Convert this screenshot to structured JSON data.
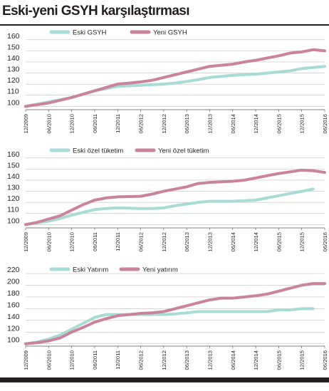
{
  "title": "Eski-yeni GSYH karşılaştırması",
  "colors": {
    "old": "#a8dad6",
    "new": "#c9839b",
    "grid": "#bfbfbf",
    "axis": "#555555"
  },
  "chart_data": [
    {
      "type": "line",
      "x": [
        "12/2009",
        "03/2010",
        "06/2010",
        "09/2010",
        "12/2010",
        "03/2011",
        "06/2011",
        "09/2011",
        "12/2011",
        "03/2012",
        "06/2012",
        "09/2012",
        "12/2012",
        "03/2013",
        "06/2013",
        "09/2013",
        "12/2013",
        "03/2014",
        "06/2014",
        "09/2014",
        "12/2014",
        "03/2015",
        "06/2015",
        "09/2015",
        "12/2015",
        "03/2016",
        "06/2016"
      ],
      "xticks": [
        "12/2009",
        "06/2010",
        "12/2010",
        "06/2011",
        "12/2011",
        "06/2012",
        "12/2012",
        "06/2013",
        "12/2013",
        "06/2014",
        "12/2014",
        "06/2015",
        "12/2015",
        "06/2016"
      ],
      "yticks": [
        100,
        110,
        120,
        130,
        140,
        150,
        160
      ],
      "ylim": [
        97,
        165
      ],
      "grid": true,
      "legend_position": "top-left",
      "series": [
        {
          "name": "Eski GSYH",
          "color": "#a8dad6",
          "values": [
            100,
            102,
            104,
            106,
            108,
            111,
            114,
            116,
            118,
            118.5,
            119,
            119.5,
            120,
            121,
            122.5,
            124,
            126,
            127,
            128,
            128.5,
            129,
            130,
            131,
            132,
            134,
            135,
            136
          ]
        },
        {
          "name": "Yeni GSYH",
          "color": "#c9839b",
          "values": [
            100,
            101.5,
            103,
            105.5,
            108,
            111,
            114,
            117,
            120,
            121,
            122,
            123.5,
            126,
            128.5,
            131,
            133.5,
            136,
            137,
            138,
            140,
            141.5,
            143.5,
            145.5,
            148,
            149,
            151,
            150
          ]
        }
      ]
    },
    {
      "type": "line",
      "x": [
        "12/2009",
        "03/2010",
        "06/2010",
        "09/2010",
        "12/2010",
        "03/2011",
        "06/2011",
        "09/2011",
        "12/2011",
        "03/2012",
        "06/2012",
        "09/2012",
        "12/2012",
        "03/2013",
        "06/2013",
        "09/2013",
        "12/2013",
        "03/2014",
        "06/2014",
        "09/2014",
        "12/2014",
        "03/2015",
        "06/2015",
        "09/2015",
        "12/2015",
        "03/2016",
        "06/2016"
      ],
      "xticks": [
        "12/2009",
        "06/2010",
        "12/2010",
        "06/2011",
        "12/2011",
        "06/2012",
        "12/2012",
        "06/2013",
        "12/2013",
        "06/2014",
        "12/2014",
        "06/2015",
        "12/2015",
        "06/2016"
      ],
      "yticks": [
        100,
        110,
        120,
        130,
        140,
        150,
        160
      ],
      "ylim": [
        97,
        165
      ],
      "grid": true,
      "legend_position": "top-left",
      "series": [
        {
          "name": "Eski özel tüketim",
          "color": "#a8dad6",
          "values": [
            100,
            101.5,
            103,
            105.5,
            108.5,
            111,
            113.5,
            114.5,
            115,
            114.8,
            114.5,
            114.5,
            115,
            117,
            118.5,
            120,
            121,
            121,
            121,
            121.5,
            122,
            124,
            126,
            128,
            130,
            132,
            null
          ]
        },
        {
          "name": "Yeni özel tüketim",
          "color": "#c9839b",
          "values": [
            100,
            102,
            105,
            108,
            113,
            118,
            122,
            124,
            125,
            125.2,
            125.5,
            127.5,
            130,
            132,
            134,
            137,
            138,
            138.5,
            139,
            140,
            142,
            144,
            146,
            147.5,
            149,
            148.5,
            147
          ]
        }
      ]
    },
    {
      "type": "line",
      "x": [
        "12/2009",
        "03/2010",
        "06/2010",
        "09/2010",
        "12/2010",
        "03/2011",
        "06/2011",
        "09/2011",
        "12/2011",
        "03/2012",
        "06/2012",
        "09/2012",
        "12/2012",
        "03/2013",
        "06/2013",
        "09/2013",
        "12/2013",
        "03/2014",
        "06/2014",
        "09/2014",
        "12/2014",
        "03/2015",
        "06/2015",
        "09/2015",
        "12/2015",
        "03/2016",
        "06/2016"
      ],
      "xticks": [
        "12/2009",
        "06/2010",
        "12/2010",
        "06/2011",
        "12/2011",
        "06/2012",
        "12/2012",
        "06/2013",
        "12/2013",
        "06/2014",
        "12/2014",
        "06/2015",
        "12/2015",
        "06/2016"
      ],
      "yticks": [
        100,
        120,
        140,
        160,
        180,
        200,
        220
      ],
      "ylim": [
        96,
        225
      ],
      "grid": true,
      "legend_position": "top-left",
      "series": [
        {
          "name": "Eski Yatırım",
          "color": "#a8dad6",
          "values": [
            100,
            103,
            108,
            115,
            125,
            135,
            145,
            150,
            150,
            150,
            150,
            150,
            150,
            151,
            153,
            155,
            155,
            155,
            155,
            155,
            155,
            155,
            158,
            158,
            160,
            160,
            null
          ]
        },
        {
          "name": "Yeni yatırım",
          "color": "#c9839b",
          "values": [
            100,
            102,
            105,
            110,
            120,
            128,
            137,
            143,
            148,
            150,
            152,
            153,
            155,
            160,
            165,
            170,
            175,
            178,
            178,
            180,
            182,
            185,
            190,
            195,
            200,
            203,
            203
          ]
        }
      ]
    }
  ]
}
